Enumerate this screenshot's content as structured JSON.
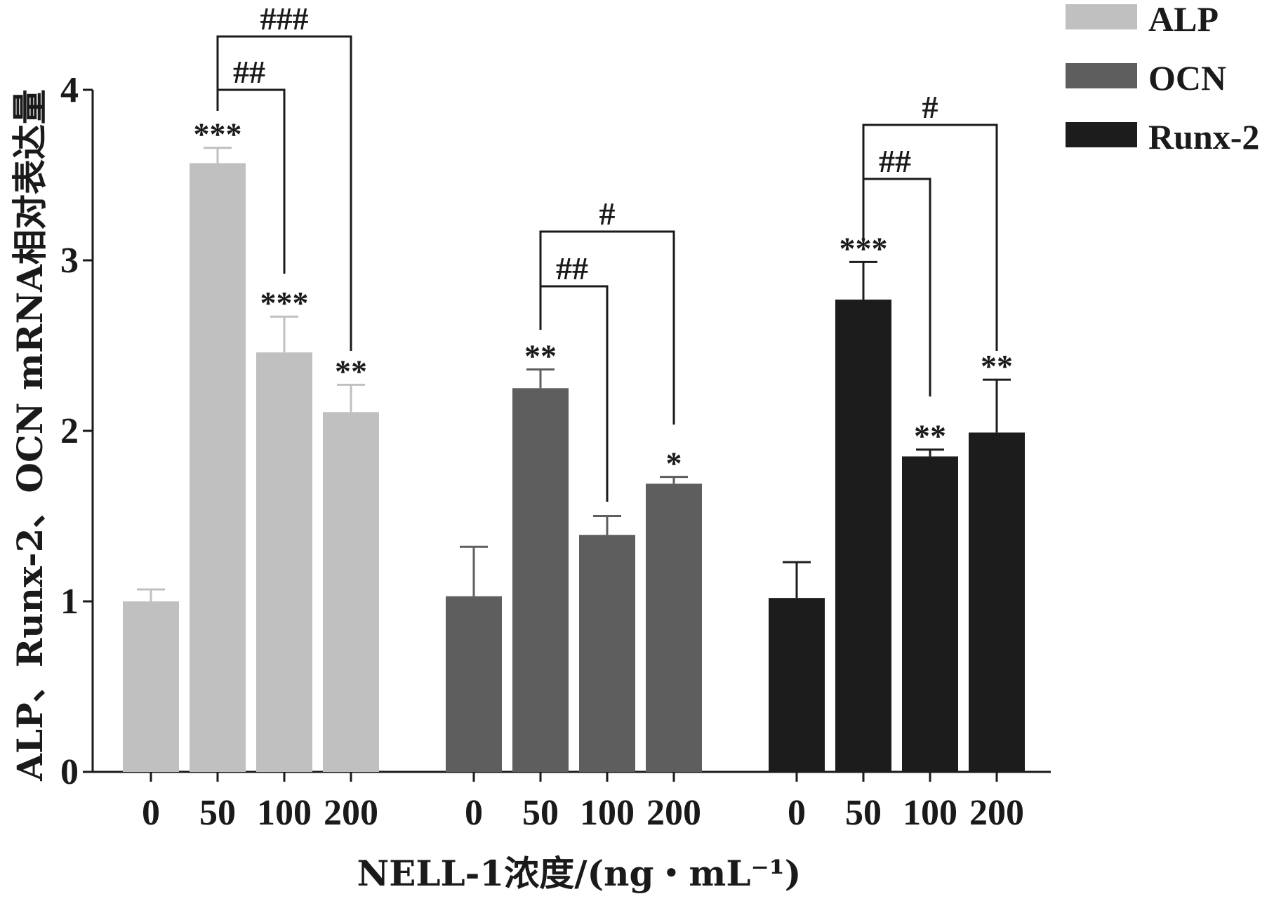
{
  "chart_data": {
    "type": "bar",
    "xlabel": "NELL-1浓度/(ng・mL⁻¹)",
    "ylabel": "ALP、Runx-2、OCN mRNA相对表达量",
    "ylim": [
      0,
      4
    ],
    "yticks": [
      0,
      1,
      2,
      3,
      4
    ],
    "groups": [
      "ALP",
      "OCN",
      "Runx-2"
    ],
    "categories": [
      "0",
      "50",
      "100",
      "200"
    ],
    "legend_position": "top-right",
    "series": [
      {
        "name": "ALP",
        "color": "#c0c0c0",
        "values": [
          1.0,
          3.57,
          2.46,
          2.11
        ],
        "errors": [
          0.07,
          0.09,
          0.21,
          0.16
        ],
        "stars": [
          "",
          "***",
          "***",
          "**"
        ]
      },
      {
        "name": "OCN",
        "color": "#5e5e5e",
        "values": [
          1.03,
          2.25,
          1.39,
          1.69
        ],
        "errors": [
          0.29,
          0.11,
          0.11,
          0.04
        ],
        "stars": [
          "",
          "**",
          "",
          "*"
        ]
      },
      {
        "name": "Runx-2",
        "color": "#1c1c1c",
        "values": [
          1.02,
          2.77,
          1.85,
          1.99
        ],
        "errors": [
          0.21,
          0.22,
          0.04,
          0.31
        ],
        "stars": [
          "",
          "***",
          "**",
          "**"
        ]
      }
    ],
    "brackets": [
      {
        "group": 0,
        "from": 1,
        "to": 2,
        "label": "##"
      },
      {
        "group": 0,
        "from": 1,
        "to": 3,
        "label": "###"
      },
      {
        "group": 1,
        "from": 1,
        "to": 2,
        "label": "##"
      },
      {
        "group": 1,
        "from": 1,
        "to": 3,
        "label": "#"
      },
      {
        "group": 2,
        "from": 1,
        "to": 2,
        "label": "##"
      },
      {
        "group": 2,
        "from": 1,
        "to": 3,
        "label": "#"
      }
    ]
  }
}
